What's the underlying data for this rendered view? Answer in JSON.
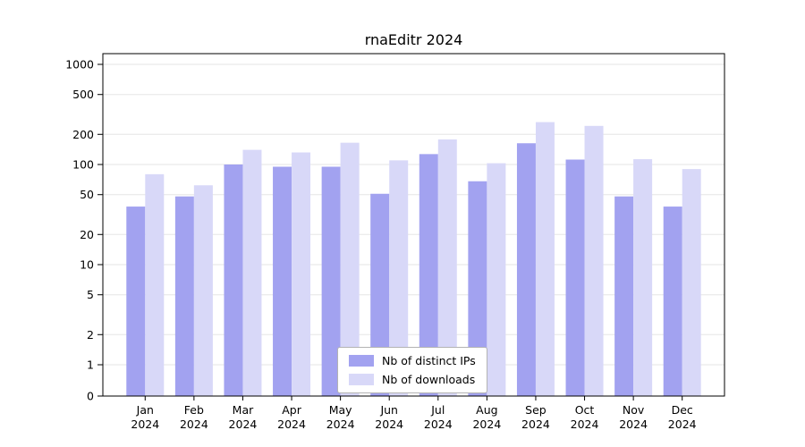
{
  "chart_data": {
    "type": "bar",
    "title": "rnaEditr 2024",
    "categories": [
      "Jan",
      "Feb",
      "Mar",
      "Apr",
      "May",
      "Jun",
      "Jul",
      "Aug",
      "Sep",
      "Oct",
      "Nov",
      "Dec"
    ],
    "x_year": "2024",
    "series": [
      {
        "name": "Nb of distinct IPs",
        "color": "#a2a2f0",
        "values": [
          38,
          48,
          100,
          95,
          95,
          51,
          127,
          68,
          163,
          112,
          48,
          38
        ]
      },
      {
        "name": "Nb of downloads",
        "color": "#d8d8f8",
        "values": [
          80,
          62,
          140,
          132,
          165,
          110,
          178,
          103,
          265,
          243,
          113,
          90
        ]
      }
    ],
    "yticks": [
      0,
      1,
      2,
      5,
      10,
      20,
      50,
      100,
      200,
      500,
      1000
    ],
    "yscale": "symlog",
    "ylim": [
      0,
      1300
    ],
    "xlabel": "",
    "ylabel": "",
    "grid": true,
    "legend_position": "lower center",
    "colors": {
      "gridline": "#e6e6e6",
      "spine": "#000000",
      "background": "#ffffff"
    }
  }
}
